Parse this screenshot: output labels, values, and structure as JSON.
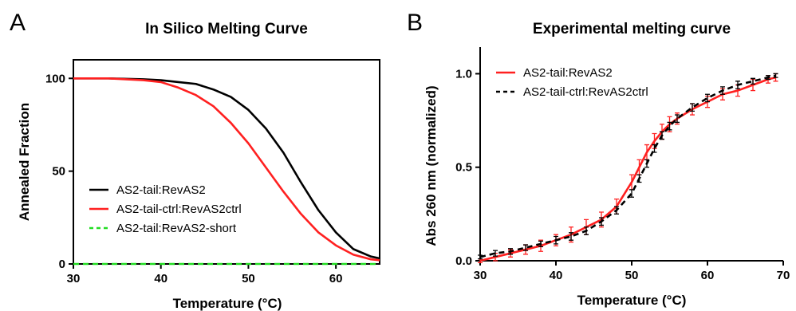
{
  "chart_data": [
    {
      "panel": "A",
      "type": "line",
      "title": "In Silico Melting Curve",
      "xlabel": "Temperature (°C)",
      "ylabel": "Annealed Fraction",
      "xlim": [
        30,
        65
      ],
      "ylim": [
        0,
        110
      ],
      "xticks": [
        30,
        40,
        50,
        60
      ],
      "yticks": [
        0,
        50,
        100
      ],
      "x_tick_labels": [
        "30",
        "40",
        "50",
        "60"
      ],
      "y_tick_labels": [
        "0",
        "50",
        "100"
      ],
      "grid": false,
      "legend_position": "bottom-left",
      "series": [
        {
          "name": "AS2-tail:RevAS2",
          "color": "#000000",
          "dash": "solid",
          "x": [
            30,
            34,
            38,
            40,
            42,
            44,
            46,
            48,
            50,
            52,
            54,
            56,
            58,
            60,
            62,
            64,
            65
          ],
          "y": [
            100,
            100,
            99.5,
            99,
            98,
            97,
            94,
            90,
            83,
            73,
            60,
            44,
            29,
            17,
            8,
            4,
            3
          ]
        },
        {
          "name": "AS2-tail-ctrl:RevAS2ctrl",
          "color": "#ff2020",
          "dash": "solid",
          "x": [
            30,
            34,
            38,
            40,
            42,
            44,
            46,
            48,
            50,
            52,
            54,
            56,
            58,
            60,
            62,
            64,
            65
          ],
          "y": [
            100,
            100,
            99,
            98,
            95,
            91,
            85,
            76,
            65,
            52,
            39,
            27,
            17,
            10,
            5,
            2.5,
            2
          ]
        },
        {
          "name": "AS2-tail:RevAS2-short",
          "color": "#22dd22",
          "dash": "dashed",
          "x": [
            30,
            65
          ],
          "y": [
            0,
            0
          ]
        }
      ]
    },
    {
      "panel": "B",
      "type": "line",
      "title": "Experimental melting curve",
      "xlabel": "Temperature (°C)",
      "ylabel": "Abs 260 nm (normalized)",
      "xlim": [
        30,
        70
      ],
      "ylim": [
        0,
        1.1
      ],
      "xticks": [
        30,
        40,
        50,
        60,
        70
      ],
      "yticks": [
        0,
        0.5,
        1.0
      ],
      "x_tick_labels": [
        "30",
        "40",
        "50",
        "60",
        "70"
      ],
      "y_tick_labels": [
        "0.0",
        "0.5",
        "1.0"
      ],
      "grid": false,
      "legend_position": "top-left",
      "series": [
        {
          "name": "AS2-tail:RevAS2",
          "color": "#ff2020",
          "dash": "solid",
          "error_bars": true,
          "x": [
            30,
            32,
            34,
            36,
            38,
            40,
            42,
            44,
            46,
            48,
            50,
            51,
            52,
            53,
            54,
            55,
            56,
            58,
            60,
            62,
            64,
            66,
            68,
            69
          ],
          "y": [
            0,
            0.02,
            0.04,
            0.06,
            0.08,
            0.11,
            0.14,
            0.18,
            0.22,
            0.29,
            0.42,
            0.5,
            0.58,
            0.64,
            0.69,
            0.73,
            0.76,
            0.81,
            0.85,
            0.89,
            0.91,
            0.94,
            0.97,
            0.98
          ],
          "err": [
            0.01,
            0.02,
            0.02,
            0.025,
            0.03,
            0.03,
            0.04,
            0.04,
            0.04,
            0.04,
            0.04,
            0.04,
            0.04,
            0.04,
            0.04,
            0.04,
            0.03,
            0.03,
            0.03,
            0.03,
            0.03,
            0.03,
            0.02,
            0.02
          ]
        },
        {
          "name": "AS2-tail-ctrl:RevAS2ctrl",
          "color": "#000000",
          "dash": "dashed",
          "error_bars": true,
          "x": [
            30,
            32,
            34,
            36,
            38,
            40,
            42,
            44,
            46,
            48,
            50,
            51,
            52,
            53,
            54,
            55,
            56,
            58,
            60,
            62,
            64,
            66,
            68,
            69
          ],
          "y": [
            0.02,
            0.04,
            0.05,
            0.07,
            0.09,
            0.11,
            0.13,
            0.16,
            0.21,
            0.27,
            0.36,
            0.44,
            0.52,
            0.6,
            0.67,
            0.72,
            0.76,
            0.82,
            0.87,
            0.91,
            0.94,
            0.96,
            0.98,
            0.99
          ],
          "err": [
            0.01,
            0.015,
            0.015,
            0.015,
            0.015,
            0.02,
            0.02,
            0.02,
            0.02,
            0.02,
            0.02,
            0.02,
            0.02,
            0.02,
            0.02,
            0.02,
            0.02,
            0.02,
            0.02,
            0.02,
            0.02,
            0.015,
            0.01,
            0.01
          ]
        }
      ]
    }
  ]
}
